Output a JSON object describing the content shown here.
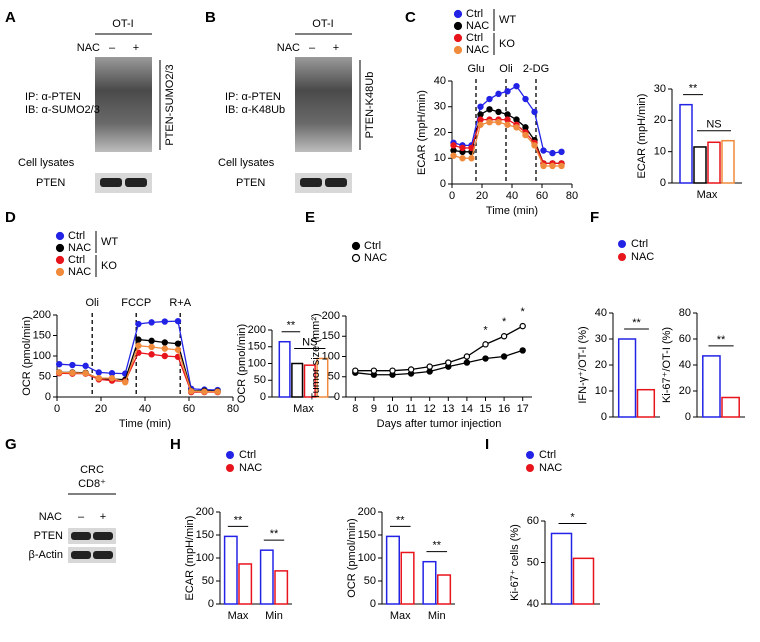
{
  "panels": [
    "A",
    "B",
    "C",
    "D",
    "E",
    "F",
    "G",
    "H",
    "I"
  ],
  "blots": [
    {
      "header": "OT-I",
      "treatment": "NAC",
      "lanes": [
        "–",
        "+"
      ],
      "ip": [
        "IP: α-PTEN",
        "IB: α-SUMO2/3"
      ],
      "band": "PTEN-SUMO2/3",
      "lysate": "Cell lysates",
      "control": [
        "PTEN"
      ]
    },
    {
      "header": "OT-I",
      "treatment": "NAC",
      "lanes": [
        "–",
        "+"
      ],
      "ip": [
        "IP: α-PTEN",
        "IB: α-K48Ub"
      ],
      "band": "PTEN-K48Ub",
      "lysate": "Cell lysates",
      "control": [
        "PTEN"
      ]
    },
    {
      "header": [
        "CRC",
        "CD8⁺"
      ],
      "treatment": "NAC",
      "lanes": [
        "–",
        "+"
      ],
      "control": [
        "PTEN",
        "β-Actin"
      ]
    }
  ],
  "chart_data": [
    {
      "type": "line",
      "x": [
        1,
        7,
        13,
        19,
        25,
        31,
        37,
        43,
        49,
        55,
        61,
        67,
        73
      ],
      "xlim": [
        0,
        80
      ],
      "xticks": [
        0,
        20,
        40,
        60,
        80
      ],
      "ylim": [
        0,
        40
      ],
      "yticks": [
        0,
        10,
        20,
        30,
        40
      ],
      "ylabel": "ECAR (mpH/min)",
      "xlabel": "Time (min)",
      "annotations": [
        {
          "text": "Glu",
          "x": 16
        },
        {
          "text": "Oli",
          "x": 36
        },
        {
          "text": "2-DG",
          "x": 56
        }
      ],
      "legend_groups": [
        "WT",
        "KO"
      ],
      "series": [
        {
          "name": "Ctrl",
          "color": "#2323e6",
          "values": [
            16,
            15,
            15,
            30,
            33,
            35,
            36,
            38,
            33,
            28,
            13,
            12,
            12.5
          ]
        },
        {
          "name": "NAC",
          "color": "#000000",
          "values": [
            13,
            12.5,
            12.5,
            27,
            29,
            28,
            27,
            25,
            22,
            17,
            8,
            8,
            8
          ]
        },
        {
          "name": "Ctrl",
          "color": "#e8141c",
          "values": [
            15,
            14,
            14,
            25,
            25,
            25,
            25,
            23,
            20,
            16,
            8,
            8,
            8
          ]
        },
        {
          "name": "NAC",
          "color": "#f08a3c",
          "values": [
            11,
            10,
            10,
            23,
            24,
            24,
            23,
            22,
            19,
            15,
            7,
            7,
            7
          ]
        }
      ]
    },
    {
      "type": "bar",
      "categories": [
        "Max"
      ],
      "ylim": [
        0,
        30
      ],
      "yticks": [
        0,
        10,
        20,
        30
      ],
      "ylabel": "ECAR (mpH/min)",
      "annotations": [
        {
          "text": "**"
        },
        {
          "text": "NS"
        }
      ],
      "series": [
        {
          "color": "#2323e6",
          "values": [
            25
          ]
        },
        {
          "color": "#000000",
          "values": [
            11.5
          ]
        },
        {
          "color": "#e8141c",
          "values": [
            13
          ]
        },
        {
          "color": "#f08a3c",
          "values": [
            13.5
          ]
        }
      ]
    },
    {
      "type": "line",
      "x": [
        1,
        7,
        13,
        19,
        25,
        31,
        37,
        43,
        49,
        55,
        61,
        67,
        73
      ],
      "xlim": [
        0,
        80
      ],
      "xticks": [
        0,
        20,
        40,
        60,
        80
      ],
      "ylim": [
        0,
        200
      ],
      "yticks": [
        0,
        50,
        100,
        150,
        200
      ],
      "ylabel": "OCR (pmol/min)",
      "xlabel": "Time (min)",
      "annotations": [
        {
          "text": "Oli",
          "x": 16
        },
        {
          "text": "FCCP",
          "x": 36
        },
        {
          "text": "R+A",
          "x": 56
        }
      ],
      "legend_groups": [
        "WT",
        "KO"
      ],
      "series": [
        {
          "name": "Ctrl",
          "color": "#2323e6",
          "values": [
            80,
            78,
            76,
            60,
            58,
            57,
            178,
            182,
            184,
            185,
            20,
            18,
            17
          ]
        },
        {
          "name": "NAC",
          "color": "#000000",
          "values": [
            60,
            60,
            59,
            45,
            44,
            42,
            140,
            137,
            133,
            130,
            15,
            15,
            14
          ]
        },
        {
          "name": "Ctrl",
          "color": "#e8141c",
          "values": [
            58,
            57,
            57,
            43,
            40,
            38,
            108,
            104,
            100,
            98,
            12,
            12,
            12
          ]
        },
        {
          "name": "NAC",
          "color": "#f08a3c",
          "values": [
            60,
            59,
            58,
            46,
            46,
            36,
            125,
            122,
            118,
            115,
            14,
            13,
            13
          ]
        }
      ]
    },
    {
      "type": "bar",
      "categories": [
        "Max"
      ],
      "ylim": [
        0,
        200
      ],
      "yticks": [
        0,
        50,
        100,
        150,
        200
      ],
      "ylabel": "OCR (pmol/min)",
      "annotations": [
        {
          "text": "**"
        },
        {
          "text": "NS"
        }
      ],
      "series": [
        {
          "color": "#2323e6",
          "values": [
            165
          ]
        },
        {
          "color": "#000000",
          "values": [
            100
          ]
        },
        {
          "color": "#e8141c",
          "values": [
            95
          ]
        },
        {
          "color": "#f08a3c",
          "values": [
            115
          ]
        }
      ]
    },
    {
      "type": "line",
      "x": [
        8,
        9,
        10,
        11,
        12,
        13,
        14,
        15,
        16,
        17
      ],
      "xlim": [
        7.5,
        17.5
      ],
      "xticks": [
        8,
        9,
        10,
        11,
        12,
        13,
        14,
        15,
        16,
        17
      ],
      "ylim": [
        0,
        200
      ],
      "yticks": [
        0,
        50,
        100,
        150,
        200
      ],
      "ylabel": "Tumor size (mm²)",
      "xlabel": "Days after tumor injection",
      "significance": [
        {
          "text": "*",
          "x": 15
        },
        {
          "text": "*",
          "x": 16
        },
        {
          "text": "*",
          "x": 17
        }
      ],
      "series": [
        {
          "name": "Ctrl",
          "color": "#000000",
          "marker": "filled",
          "values": [
            60,
            55,
            55,
            58,
            63,
            75,
            85,
            95,
            100,
            115
          ]
        },
        {
          "name": "NAC",
          "color": "#000000",
          "marker": "open",
          "values": [
            65,
            65,
            65,
            68,
            75,
            85,
            100,
            130,
            150,
            175
          ]
        }
      ]
    },
    {
      "type": "bar",
      "categories": [
        null
      ],
      "ylim": [
        0,
        40
      ],
      "yticks": [
        0,
        10,
        20,
        30,
        40
      ],
      "ylabel": "IFN-γ⁺/OT-I (%)",
      "annotations": [
        {
          "text": "**"
        }
      ],
      "series": [
        {
          "name": "Ctrl",
          "color": "#2323e6",
          "values": [
            30
          ]
        },
        {
          "name": "NAC",
          "color": "#e8141c",
          "values": [
            10.5
          ]
        }
      ]
    },
    {
      "type": "bar",
      "categories": [
        null
      ],
      "ylim": [
        0,
        80
      ],
      "yticks": [
        0,
        20,
        40,
        60,
        80
      ],
      "ylabel": "Ki-67⁺/OT-I (%)",
      "annotations": [
        {
          "text": "**"
        }
      ],
      "series": [
        {
          "color": "#2323e6",
          "values": [
            47
          ]
        },
        {
          "color": "#e8141c",
          "values": [
            15
          ]
        }
      ]
    },
    {
      "type": "bar",
      "categories": [
        "Max",
        "Min"
      ],
      "ylim": [
        0,
        200
      ],
      "yticks": [
        0,
        50,
        100,
        150,
        200
      ],
      "ylabel": "ECAR (mpH/min)",
      "annotations": [
        {
          "text": "**"
        },
        {
          "text": "**"
        }
      ],
      "series": [
        {
          "name": "Ctrl",
          "color": "#2323e6",
          "values": [
            147,
            117
          ]
        },
        {
          "name": "NAC",
          "color": "#e8141c",
          "values": [
            87,
            72
          ]
        }
      ]
    },
    {
      "type": "bar",
      "categories": [
        "Max",
        "Min"
      ],
      "ylim": [
        0,
        200
      ],
      "yticks": [
        0,
        50,
        100,
        150,
        200
      ],
      "ylabel": "OCR (pmol/min)",
      "annotations": [
        {
          "text": "**"
        },
        {
          "text": "**"
        }
      ],
      "series": [
        {
          "color": "#2323e6",
          "values": [
            147,
            92
          ]
        },
        {
          "color": "#e8141c",
          "values": [
            112,
            63
          ]
        }
      ]
    },
    {
      "type": "bar",
      "categories": [
        null
      ],
      "ylim": [
        40,
        60
      ],
      "yticks": [
        40,
        50,
        60
      ],
      "ylabel": "Ki-67⁺ cells (%)",
      "annotations": [
        {
          "text": "*"
        }
      ],
      "series": [
        {
          "name": "Ctrl",
          "color": "#2323e6",
          "values": [
            57
          ]
        },
        {
          "name": "NAC",
          "color": "#e8141c",
          "values": [
            51
          ]
        }
      ]
    }
  ]
}
